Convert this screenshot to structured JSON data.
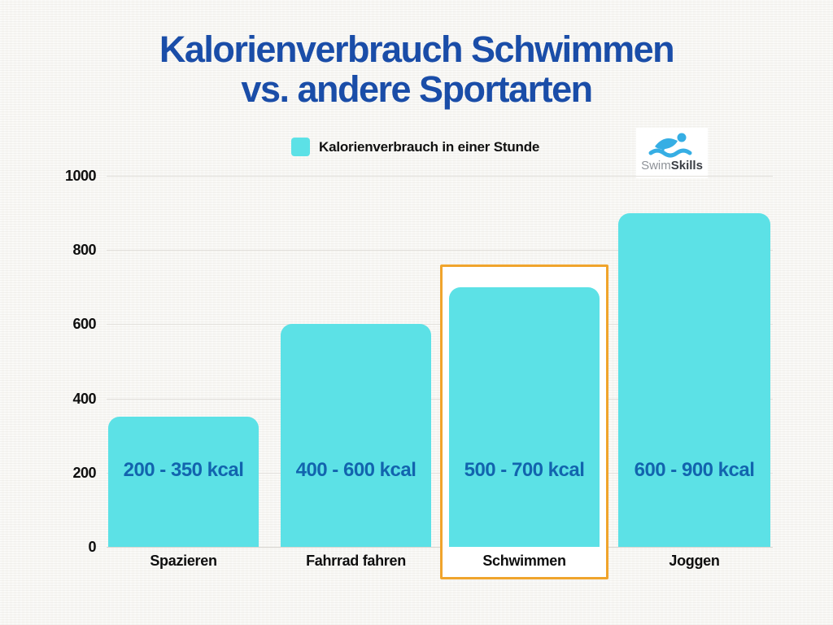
{
  "page": {
    "background": "#f8f7f4"
  },
  "title": {
    "line1": "Kalorienverbrauch Schwimmen",
    "line2": "vs. andere Sportarten",
    "color": "#1A4DA8"
  },
  "legend": {
    "label": "Kalorienverbrauch in einer Stunde",
    "swatch_color": "#5CE1E6"
  },
  "logo": {
    "brand_part1": "Swim",
    "brand_part2": "Skills",
    "icon": "swimmer-icon",
    "icon_color": "#36AEE4"
  },
  "chart_data": {
    "type": "bar",
    "title": "Kalorienverbrauch Schwimmen vs. andere Sportarten",
    "legend_label": "Kalorienverbrauch in einer Stunde",
    "legend_position": "top-center",
    "categories": [
      "Spazieren",
      "Fahrrad fahren",
      "Schwimmen",
      "Joggen"
    ],
    "values": [
      350,
      600,
      700,
      900
    ],
    "ranges_kcal": [
      [
        200,
        350
      ],
      [
        400,
        600
      ],
      [
        500,
        700
      ],
      [
        600,
        900
      ]
    ],
    "bar_labels": [
      "200 - 350 kcal",
      "400 - 600 kcal",
      "500 - 700 kcal",
      "600 - 900 kcal"
    ],
    "ylabel": "",
    "xlabel": "",
    "ylim": [
      0,
      1000
    ],
    "yticks": [
      0,
      200,
      400,
      600,
      800,
      1000
    ],
    "grid": "horizontal-subtle",
    "highlight_index": 2,
    "highlighted_category": "Schwimmen",
    "bar_color": "#5CE1E6",
    "bar_label_color": "#1264AE",
    "highlight_border_color": "#F0A42C",
    "axis_label_color": "#0e0e0e"
  }
}
